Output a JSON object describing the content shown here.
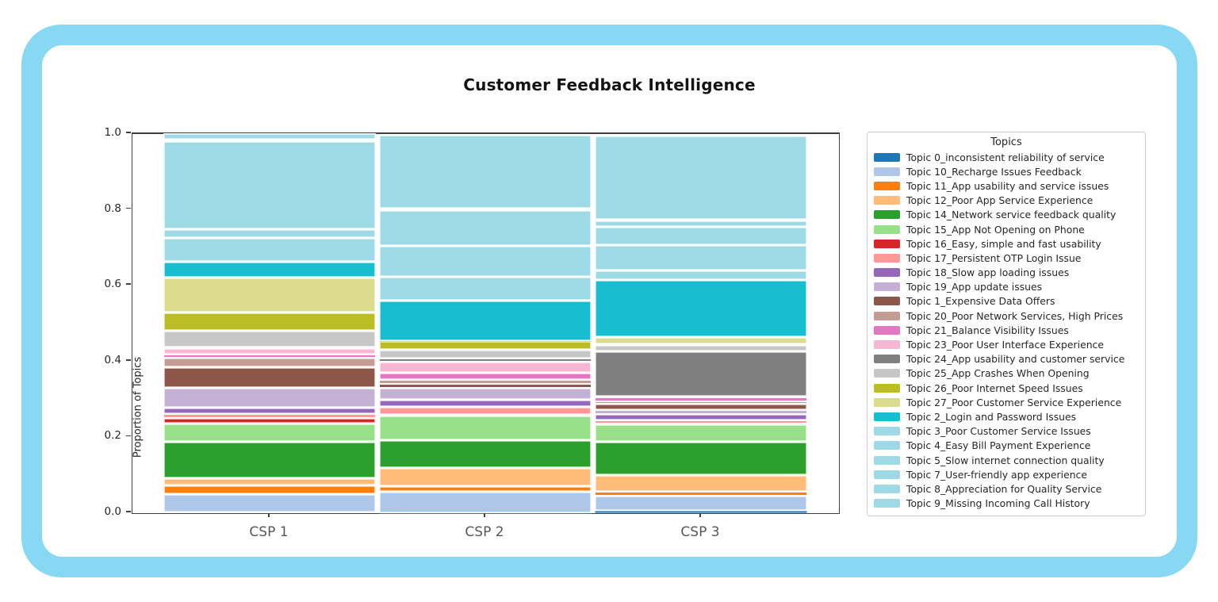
{
  "title": "Customer Feedback Intelligence",
  "frame": {
    "border_color": "#87d8f3",
    "card_color": "#ffffff"
  },
  "axes": {
    "ylabel": "Proportion of Topics",
    "yticks": [
      "0.0",
      "0.2",
      "0.4",
      "0.6",
      "0.8",
      "1.0"
    ],
    "spine_color": "#3f3f3f"
  },
  "legend": {
    "title": "Topics",
    "position": "right"
  },
  "chart_data": {
    "type": "bar",
    "stacked": true,
    "stack_order": "first series at bottom",
    "title": "Customer Feedback Intelligence",
    "xlabel": "",
    "ylabel": "Proportion of Topics",
    "ylim": [
      0,
      1
    ],
    "grid": false,
    "legend_position": "right",
    "legend_title": "Topics",
    "categories": [
      "CSP 1",
      "CSP 2",
      "CSP 3"
    ],
    "series": [
      {
        "name": "Topic 0_inconsistent reliability of service",
        "color": "#1f77b4",
        "values": [
          0.002,
          0.001,
          0.006
        ]
      },
      {
        "name": "Topic 10_Recharge Issues Feedback",
        "color": "#aec7e8",
        "values": [
          0.048,
          0.056,
          0.04
        ]
      },
      {
        "name": "Topic 11_App usability and service issues",
        "color": "#ff7f0e",
        "values": [
          0.023,
          0.015,
          0.01
        ]
      },
      {
        "name": "Topic 12_Poor App Service Experience",
        "color": "#ffbb78",
        "values": [
          0.019,
          0.048,
          0.044
        ]
      },
      {
        "name": "Topic 14_Network service feedback quality",
        "color": "#2ca02c",
        "values": [
          0.096,
          0.073,
          0.088
        ]
      },
      {
        "name": "Topic 15_App Not Opening on Phone",
        "color": "#98df8a",
        "values": [
          0.048,
          0.065,
          0.046
        ]
      },
      {
        "name": "Topic 16_Easy, simple and fast usability",
        "color": "#d62728",
        "values": [
          0.015,
          0.002,
          0.002
        ]
      },
      {
        "name": "Topic 17_Persistent OTP Login Issue",
        "color": "#ff9896",
        "values": [
          0.01,
          0.021,
          0.008
        ]
      },
      {
        "name": "Topic 18_Slow app loading issues",
        "color": "#9467bd",
        "values": [
          0.017,
          0.019,
          0.017
        ]
      },
      {
        "name": "Topic 19_App update issues",
        "color": "#c5b0d5",
        "values": [
          0.052,
          0.031,
          0.01
        ]
      },
      {
        "name": "Topic 1_Expensive Data Offers",
        "color": "#8c564b",
        "values": [
          0.056,
          0.01,
          0.017
        ]
      },
      {
        "name": "Topic 20_Poor Network Services, High Prices",
        "color": "#c49c94",
        "values": [
          0.025,
          0.01,
          0.008
        ]
      },
      {
        "name": "Topic 21_Balance Visibility Issues",
        "color": "#e377c2",
        "values": [
          0.008,
          0.019,
          0.01
        ]
      },
      {
        "name": "Topic 23_Poor User Interface Experience",
        "color": "#f7b6d2",
        "values": [
          0.017,
          0.029,
          0.002
        ]
      },
      {
        "name": "Topic 24_App usability and customer service",
        "color": "#7f7f7f",
        "values": [
          0.002,
          0.01,
          0.119
        ]
      },
      {
        "name": "Topic 25_App Crashes When Opening",
        "color": "#c7c7c7",
        "values": [
          0.044,
          0.023,
          0.017
        ]
      },
      {
        "name": "Topic 26_Poor Internet Speed Issues",
        "color": "#bcbd22",
        "values": [
          0.048,
          0.021,
          0.002
        ]
      },
      {
        "name": "Topic 27_Poor Customer Service Experience",
        "color": "#dbdb8d",
        "values": [
          0.092,
          0.002,
          0.019
        ]
      },
      {
        "name": "Topic 2_Login and Password Issues",
        "color": "#17becf",
        "values": [
          0.042,
          0.105,
          0.151
        ]
      },
      {
        "name": "Topic 3_Poor Customer Service Issues",
        "color": "#9edae5",
        "values": [
          0.063,
          0.063,
          0.025
        ]
      },
      {
        "name": "Topic 4_Easy Bill Payment Experience",
        "color": "#9edae5",
        "values": [
          0.021,
          0.082,
          0.067
        ]
      },
      {
        "name": "Topic 5_Slow internet connection quality",
        "color": "#9edae5",
        "values": [
          0.234,
          0.094,
          0.048
        ]
      },
      {
        "name": "Topic 7_User-friendly app experience",
        "color": "#9edae5",
        "values": [
          0.002,
          0.002,
          0.017
        ]
      },
      {
        "name": "Topic 8_Appreciation for Quality Service",
        "color": "#9edae5",
        "values": [
          0.002,
          0.002,
          0.002
        ]
      },
      {
        "name": "Topic 9_Missing Incoming Call History",
        "color": "#9edae5",
        "values": [
          0.017,
          0.195,
          0.221
        ]
      }
    ]
  }
}
